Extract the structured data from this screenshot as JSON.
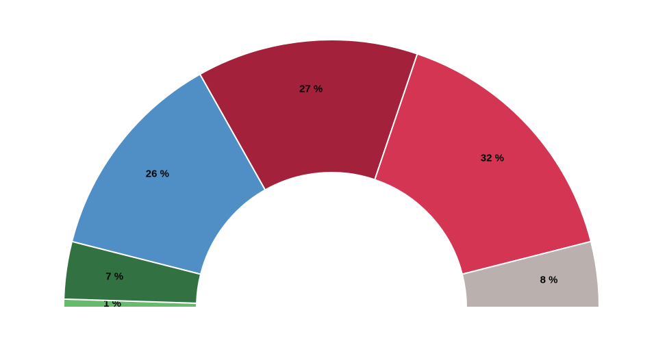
{
  "chart_data": {
    "type": "pie",
    "half": true,
    "values": [
      1,
      7,
      26,
      27,
      32,
      8
    ],
    "value_labels": [
      "1 %",
      "7 %",
      "26 %",
      "27 %",
      "32 %",
      "8 %"
    ],
    "colors": [
      "#66bb6a",
      "#327142",
      "#4f8fc6",
      "#a3213b",
      "#d33553",
      "#bab0ae"
    ]
  }
}
